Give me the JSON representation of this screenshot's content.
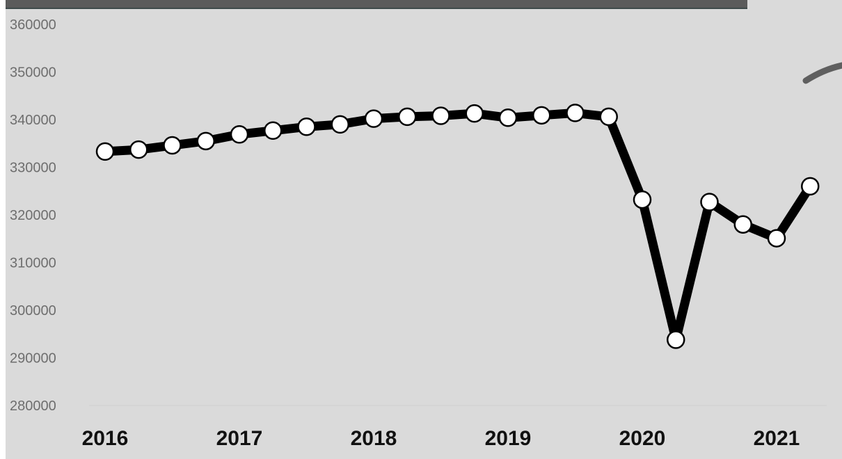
{
  "chart_data": {
    "type": "line",
    "title": "",
    "xlabel": "",
    "ylabel": "",
    "x_tick_labels": [
      "2016",
      "2017",
      "2018",
      "2019",
      "2020",
      "2021"
    ],
    "y_tick_labels": [
      "280000",
      "290000",
      "300000",
      "310000",
      "320000",
      "330000",
      "340000",
      "350000",
      "360000"
    ],
    "ylim": [
      280000,
      360000
    ],
    "grid": false,
    "legend": "none",
    "series": [
      {
        "x": [
          "2016-Q1",
          "2016-Q2",
          "2016-Q3",
          "2016-Q4",
          "2017-Q1",
          "2017-Q2",
          "2017-Q3",
          "2017-Q4",
          "2018-Q1",
          "2018-Q2",
          "2018-Q3",
          "2018-Q4",
          "2019-Q1",
          "2019-Q2",
          "2019-Q3",
          "2019-Q4",
          "2020-Q1",
          "2020-Q2",
          "2020-Q3",
          "2020-Q4",
          "2021-Q1",
          "2021-Q2"
        ],
        "values": [
          333300,
          333700,
          334600,
          335500,
          336900,
          337700,
          338500,
          339000,
          340200,
          340600,
          340800,
          341300,
          340400,
          340900,
          341400,
          340600,
          323200,
          293800,
          322700,
          318000,
          315100,
          326000
        ]
      }
    ]
  },
  "colors": {
    "background": "#dadada",
    "line": "#000000",
    "marker_fill": "#ffffff",
    "top_bar": "#5b5b5b",
    "decoration": "#5f5f5f"
  }
}
